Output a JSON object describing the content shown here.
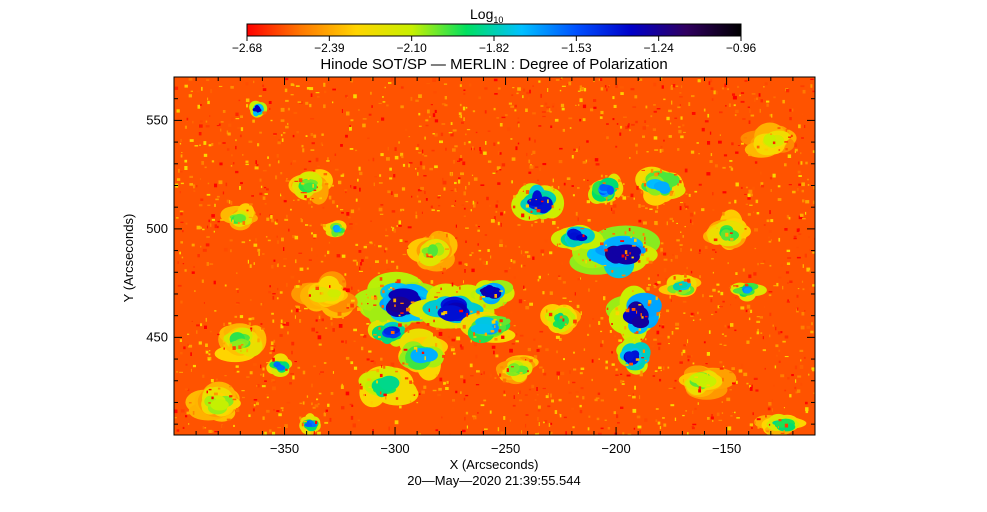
{
  "chart_data": {
    "type": "heatmap",
    "title": "Hinode SOT/SP — MERLIN : Degree of Polarization",
    "xlabel": "X (Arcseconds)",
    "ylabel": "Y (Arcseconds)",
    "footer": "20—May—2020 21:39:55.544",
    "colorbar": {
      "label": "Log",
      "label_sub": "10",
      "ticks": [
        "−2.68",
        "−2.39",
        "−2.10",
        "−1.82",
        "−1.53",
        "−1.24",
        "−0.96"
      ],
      "range": [
        -2.68,
        -0.96
      ],
      "colormap": [
        "#ff0000",
        "#ff7a00",
        "#ffd500",
        "#c8f000",
        "#00e060",
        "#00c0ff",
        "#0050ff",
        "#0000c8",
        "#300060",
        "#000000"
      ]
    },
    "xlim": [
      -400,
      -110
    ],
    "ylim": [
      405,
      570
    ],
    "xticks": [
      -350,
      -300,
      -250,
      -200,
      -150
    ],
    "xtick_labels": [
      "−350",
      "−300",
      "−250",
      "−200",
      "−150"
    ],
    "yticks": [
      450,
      500,
      550
    ],
    "ytick_labels": [
      "450",
      "500",
      "550"
    ],
    "background_value": -2.55,
    "regions": [
      {
        "x": -297,
        "y": 466,
        "rx": 14,
        "ry": 9,
        "value": -1.28
      },
      {
        "x": -272,
        "y": 463,
        "rx": 13,
        "ry": 8,
        "value": -1.35
      },
      {
        "x": -256,
        "y": 471,
        "rx": 7,
        "ry": 5,
        "value": -1.3
      },
      {
        "x": -303,
        "y": 452,
        "rx": 7,
        "ry": 5,
        "value": -1.45
      },
      {
        "x": -287,
        "y": 442,
        "rx": 9,
        "ry": 7,
        "value": -1.75
      },
      {
        "x": -305,
        "y": 428,
        "rx": 10,
        "ry": 7,
        "value": -1.9
      },
      {
        "x": -258,
        "y": 455,
        "rx": 10,
        "ry": 6,
        "value": -1.7
      },
      {
        "x": -200,
        "y": 488,
        "rx": 15,
        "ry": 8,
        "value": -1.25
      },
      {
        "x": -218,
        "y": 496,
        "rx": 7,
        "ry": 5,
        "value": -1.4
      },
      {
        "x": -235,
        "y": 512,
        "rx": 8,
        "ry": 7,
        "value": -1.4
      },
      {
        "x": -189,
        "y": 460,
        "rx": 10,
        "ry": 8,
        "value": -1.28
      },
      {
        "x": -192,
        "y": 441,
        "rx": 6,
        "ry": 6,
        "value": -1.35
      },
      {
        "x": -180,
        "y": 520,
        "rx": 8,
        "ry": 6,
        "value": -1.7
      },
      {
        "x": -205,
        "y": 518,
        "rx": 6,
        "ry": 5,
        "value": -1.6
      },
      {
        "x": -170,
        "y": 473,
        "rx": 6,
        "ry": 4,
        "value": -1.8
      },
      {
        "x": -141,
        "y": 472,
        "rx": 5,
        "ry": 3,
        "value": -1.65
      },
      {
        "x": -370,
        "y": 448,
        "rx": 9,
        "ry": 7,
        "value": -2.0
      },
      {
        "x": -340,
        "y": 520,
        "rx": 8,
        "ry": 6,
        "value": -2.0
      },
      {
        "x": -283,
        "y": 490,
        "rx": 8,
        "ry": 6,
        "value": -2.05
      },
      {
        "x": -150,
        "y": 498,
        "rx": 8,
        "ry": 6,
        "value": -2.0
      },
      {
        "x": -370,
        "y": 505,
        "rx": 6,
        "ry": 4,
        "value": -2.0
      },
      {
        "x": -362,
        "y": 555,
        "rx": 3,
        "ry": 3,
        "value": -1.3
      },
      {
        "x": -352,
        "y": 437,
        "rx": 4,
        "ry": 3,
        "value": -1.6
      },
      {
        "x": -338,
        "y": 410,
        "rx": 4,
        "ry": 3,
        "value": -1.6
      },
      {
        "x": -326,
        "y": 500,
        "rx": 4,
        "ry": 3,
        "value": -1.7
      },
      {
        "x": -225,
        "y": 458,
        "rx": 6,
        "ry": 5,
        "value": -1.9
      },
      {
        "x": -245,
        "y": 435,
        "rx": 7,
        "ry": 5,
        "value": -2.05
      },
      {
        "x": -160,
        "y": 430,
        "rx": 9,
        "ry": 6,
        "value": -2.05
      },
      {
        "x": -125,
        "y": 410,
        "rx": 8,
        "ry": 4,
        "value": -1.9
      },
      {
        "x": -380,
        "y": 420,
        "rx": 9,
        "ry": 7,
        "value": -2.1
      },
      {
        "x": -330,
        "y": 470,
        "rx": 10,
        "ry": 7,
        "value": -2.15
      },
      {
        "x": -130,
        "y": 540,
        "rx": 8,
        "ry": 6,
        "value": -2.15
      }
    ]
  }
}
